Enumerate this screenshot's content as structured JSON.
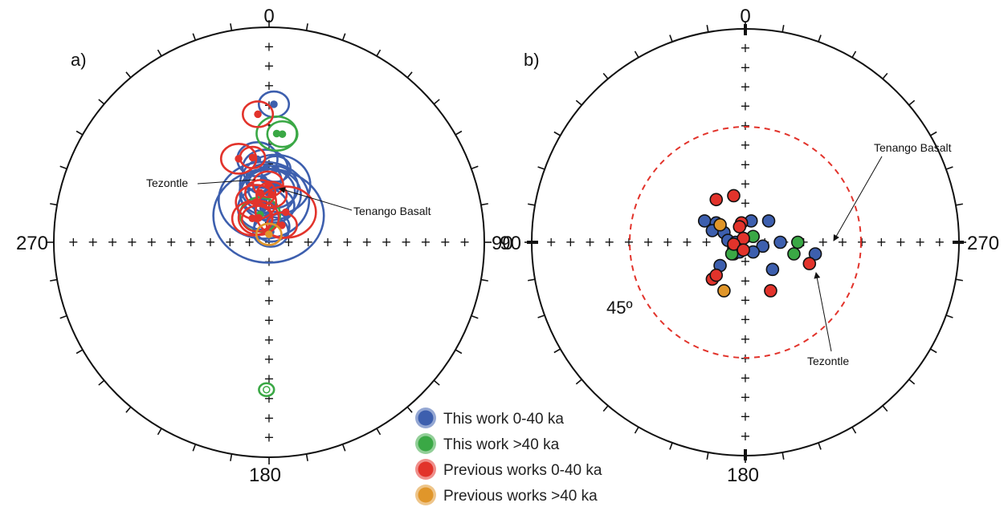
{
  "colors": {
    "this_work_young": "#3d5fae",
    "this_work_old": "#3aa845",
    "previous_young": "#e2332b",
    "previous_old": "#e0962a",
    "dashed_circle": "#e2332b"
  },
  "chart_data": [
    {
      "type": "scatter",
      "panel_label": "a)",
      "projection": "equal-area stereonet (lower hemisphere)",
      "compass_labels": {
        "top": "0",
        "right": "90",
        "bottom": "180",
        "left": "270"
      },
      "annotations": [
        {
          "text": "Tezontle"
        },
        {
          "text": "Tenango Basalt"
        }
      ],
      "series": [
        {
          "name": "This work 0-40 ka",
          "color": "this_work_young",
          "points": [
            [
              9,
              86,
              7
            ],
            [
              10,
              84,
              7
            ],
            [
              359,
              80,
              22
            ],
            [
              350,
              77,
              10
            ],
            [
              8,
              76,
              8
            ],
            [
              353,
              74,
              18
            ],
            [
              2,
              72,
              12
            ],
            [
              358,
              71,
              11
            ],
            [
              4,
              69,
              10
            ],
            [
              6,
              68,
              14
            ],
            [
              355,
              66,
              7
            ],
            [
              357,
              62,
              9
            ],
            [
              352,
              58,
              8
            ],
            [
              5,
              62,
              6
            ],
            [
              2,
              36,
              6
            ]
          ]
        },
        {
          "name": "This work >40 ka",
          "color": "this_work_old",
          "points": [
            [
              342,
              79,
              8
            ],
            [
              4,
              48,
              8
            ],
            [
              7,
              48,
              6
            ],
            [
              181,
              -32,
              3
            ]
          ]
        },
        {
          "name": "Previous works 0-40 ka",
          "color": "previous_young",
          "points": [
            [
              325,
              79,
              8
            ],
            [
              333,
              80,
              6
            ],
            [
              337,
              80,
              8
            ],
            [
              37,
              82,
              6
            ],
            [
              29,
              77,
              12
            ],
            [
              342,
              74,
              8
            ],
            [
              350,
              71,
              6
            ],
            [
              3,
              72,
              6
            ],
            [
              359,
              68,
              6
            ],
            [
              340,
              56,
              7
            ],
            [
              349,
              57,
              5
            ],
            [
              355,
              40,
              6
            ]
          ]
        },
        {
          "name": "Previous works >40 ka",
          "color": "previous_old",
          "points": [
            [
              359,
              87,
              5
            ]
          ]
        }
      ]
    },
    {
      "type": "scatter",
      "panel_label": "b)",
      "projection": "equal-area stereonet",
      "compass_labels": {
        "top": "0",
        "right": "270",
        "bottom": "180",
        "left": "90"
      },
      "dashed_circle_label": "45º",
      "dashed_circle_inclination": 45,
      "annotations": [
        {
          "text": "Tenango Basalt"
        },
        {
          "text": "Tezontle"
        }
      ],
      "series": [
        {
          "name": "This work 0-40 ka",
          "color": "this_work_young",
          "points": [
            [
              -2.1,
              1.1
            ],
            [
              -1.5,
              1.0
            ],
            [
              -1.7,
              0.6
            ],
            [
              -1.1,
              0.5
            ],
            [
              0.3,
              1.1
            ],
            [
              1.2,
              1.1
            ],
            [
              -0.9,
              0.1
            ],
            [
              -0.6,
              -0.6
            ],
            [
              -0.5,
              0
            ],
            [
              0.9,
              -0.2
            ],
            [
              0.4,
              -0.5
            ],
            [
              1.8,
              0
            ],
            [
              3.6,
              -0.6
            ],
            [
              1.4,
              -1.4
            ],
            [
              -1.3,
              -1.2
            ],
            [
              -0.6,
              -0.3
            ],
            [
              -0.3,
              -0.5
            ]
          ]
        },
        {
          "name": "This work >40 ka",
          "color": "this_work_old",
          "points": [
            [
              0.4,
              0.3
            ],
            [
              2.7,
              0
            ],
            [
              2.5,
              -0.6
            ],
            [
              -0.7,
              -0.6
            ]
          ]
        },
        {
          "name": "Previous works 0-40 ka",
          "color": "previous_young",
          "points": [
            [
              -1.5,
              2.2
            ],
            [
              -0.6,
              2.4
            ],
            [
              -0.2,
              1.0
            ],
            [
              -0.1,
              0.2
            ],
            [
              -0.6,
              -0.1
            ],
            [
              -0.1,
              -0.4
            ],
            [
              -1.7,
              -1.9
            ],
            [
              -1.5,
              -1.7
            ],
            [
              1.3,
              -2.5
            ],
            [
              3.3,
              -1.1
            ],
            [
              -0.3,
              0.8
            ]
          ]
        },
        {
          "name": "Previous works >40 ka",
          "color": "previous_old",
          "points": [
            [
              -1.3,
              0.9
            ],
            [
              -1.1,
              -2.5
            ]
          ]
        }
      ]
    }
  ],
  "legend": [
    {
      "label": "This work 0-40 ka",
      "color": "this_work_young"
    },
    {
      "label": "This work >40 ka",
      "color": "this_work_old"
    },
    {
      "label": "Previous works 0-40 ka",
      "color": "previous_young"
    },
    {
      "label": "Previous works >40 ka",
      "color": "previous_old"
    }
  ]
}
